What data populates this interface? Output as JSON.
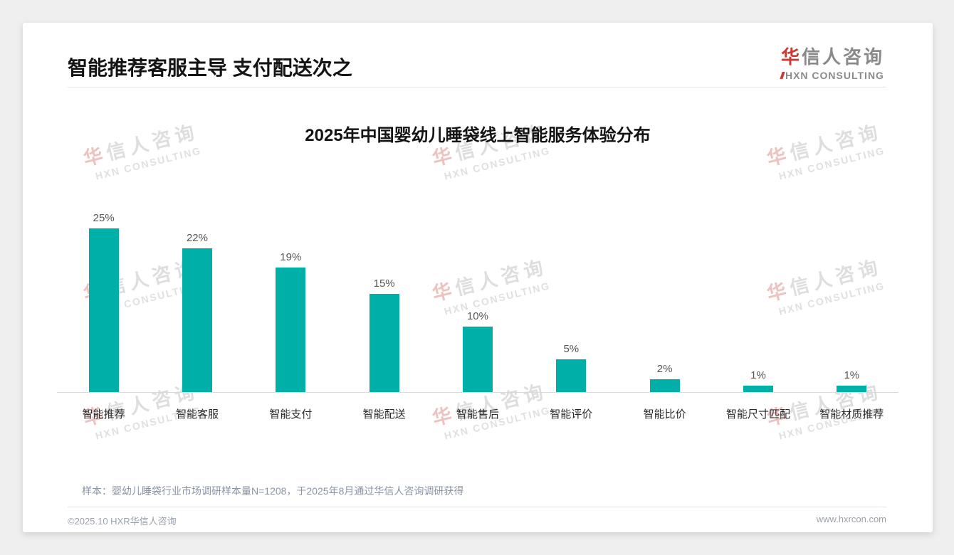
{
  "page": {
    "header": {
      "title": "智能推荐客服主导 支付配送次之"
    },
    "logo": {
      "cn_first": "华",
      "cn_rest": "信人咨询",
      "en": "XN CONSULTING"
    },
    "watermark": {
      "cn_first": "华",
      "cn_rest": "信人咨询",
      "en": "HXN CONSULTING"
    },
    "footer": {
      "sample_note": "样本：婴幼儿睡袋行业市场调研样本量N=1208，于2025年8月通过华信人咨询调研获得",
      "copyright": "©2025.10 HXR华信人咨询",
      "website": "www.hxrcon.com"
    }
  },
  "chart_data": {
    "type": "bar",
    "title": "2025年中国婴幼儿睡袋线上智能服务体验分布",
    "categories": [
      "智能推荐",
      "智能客服",
      "智能支付",
      "智能配送",
      "智能售后",
      "智能评价",
      "智能比价",
      "智能尺寸匹配",
      "智能材质推荐"
    ],
    "values": [
      25,
      22,
      19,
      15,
      10,
      5,
      2,
      1,
      1
    ],
    "value_labels": [
      "25%",
      "22%",
      "19%",
      "15%",
      "10%",
      "5%",
      "2%",
      "1%",
      "1%"
    ],
    "unit": "%",
    "bar_color": "#00b0a8",
    "xlabel": "",
    "ylabel": "",
    "ylim": [
      0,
      27
    ],
    "grid": false,
    "legend": false,
    "data_labels_position": "above-bars"
  }
}
